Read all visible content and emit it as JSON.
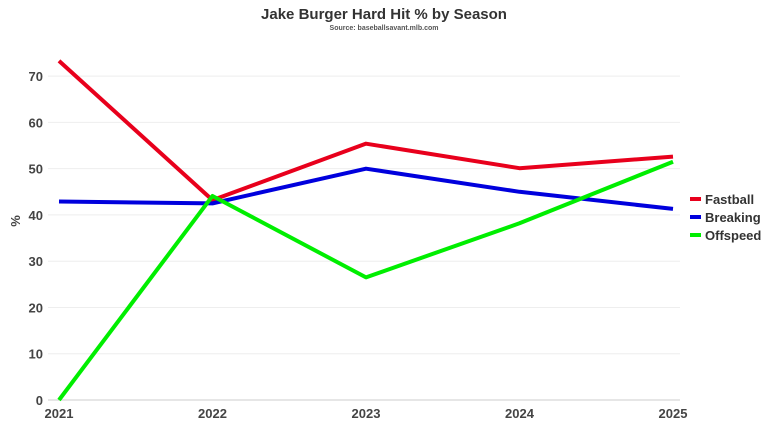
{
  "colors": {
    "fastball": "#e8001c",
    "breaking": "#0000dd",
    "offspeed": "#00ee00"
  },
  "chart_data": {
    "type": "line",
    "title": "Jake Burger Hard Hit % by Season",
    "subtitle": "Source: baseballsavant.mlb.com",
    "xlabel": "",
    "ylabel": "%",
    "x": [
      "2021",
      "2022",
      "2023",
      "2024",
      "2025"
    ],
    "ylim": [
      0,
      75
    ],
    "yticks": [
      0,
      10,
      20,
      30,
      40,
      50,
      60,
      70
    ],
    "grid": true,
    "legend": "right",
    "series": [
      {
        "name": "Fastball",
        "values": [
          73.3,
          43.2,
          55.4,
          50.1,
          52.6
        ]
      },
      {
        "name": "Breaking",
        "values": [
          42.9,
          42.5,
          50.0,
          45.0,
          41.3
        ]
      },
      {
        "name": "Offspeed",
        "values": [
          0.0,
          44.1,
          26.5,
          38.2,
          51.5
        ]
      }
    ]
  }
}
